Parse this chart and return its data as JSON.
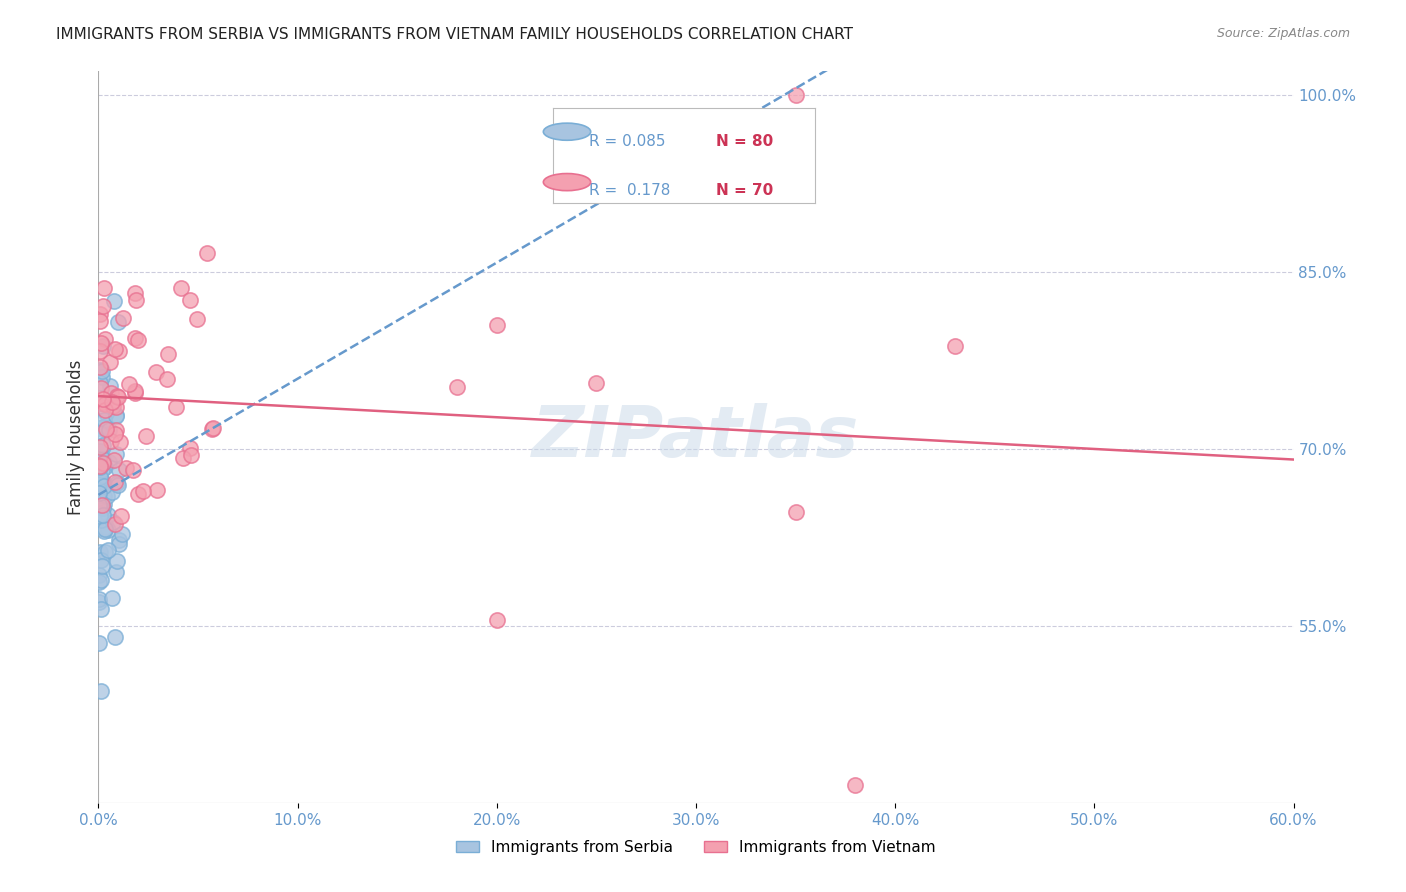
{
  "title": "IMMIGRANTS FROM SERBIA VS IMMIGRANTS FROM VIETNAM FAMILY HOUSEHOLDS CORRELATION CHART",
  "source": "Source: ZipAtlas.com",
  "ylabel": "Family Households",
  "right_ytick_labels": [
    "100.0%",
    "85.0%",
    "70.0%",
    "55.0%"
  ],
  "right_ytick_values": [
    1.0,
    0.85,
    0.7,
    0.55
  ],
  "xlim": [
    0.0,
    0.6
  ],
  "ylim": [
    0.4,
    1.02
  ],
  "serbia_color": "#a8c4e0",
  "serbia_edge_color": "#7aaed6",
  "vietnam_color": "#f4a0b0",
  "vietnam_edge_color": "#e87090",
  "serbia_R": 0.085,
  "serbia_N": 80,
  "vietnam_R": 0.178,
  "vietnam_N": 70,
  "trend_serbia_color": "#6699cc",
  "trend_vietnam_color": "#e06080",
  "watermark": "ZIPatlas",
  "legend_serbia_label": "Immigrants from Serbia",
  "legend_vietnam_label": "Immigrants from Vietnam",
  "tick_color": "#6699cc",
  "grid_color": "#ccccdd",
  "spine_color": "#aaaaaa",
  "N_color": "#cc3355"
}
